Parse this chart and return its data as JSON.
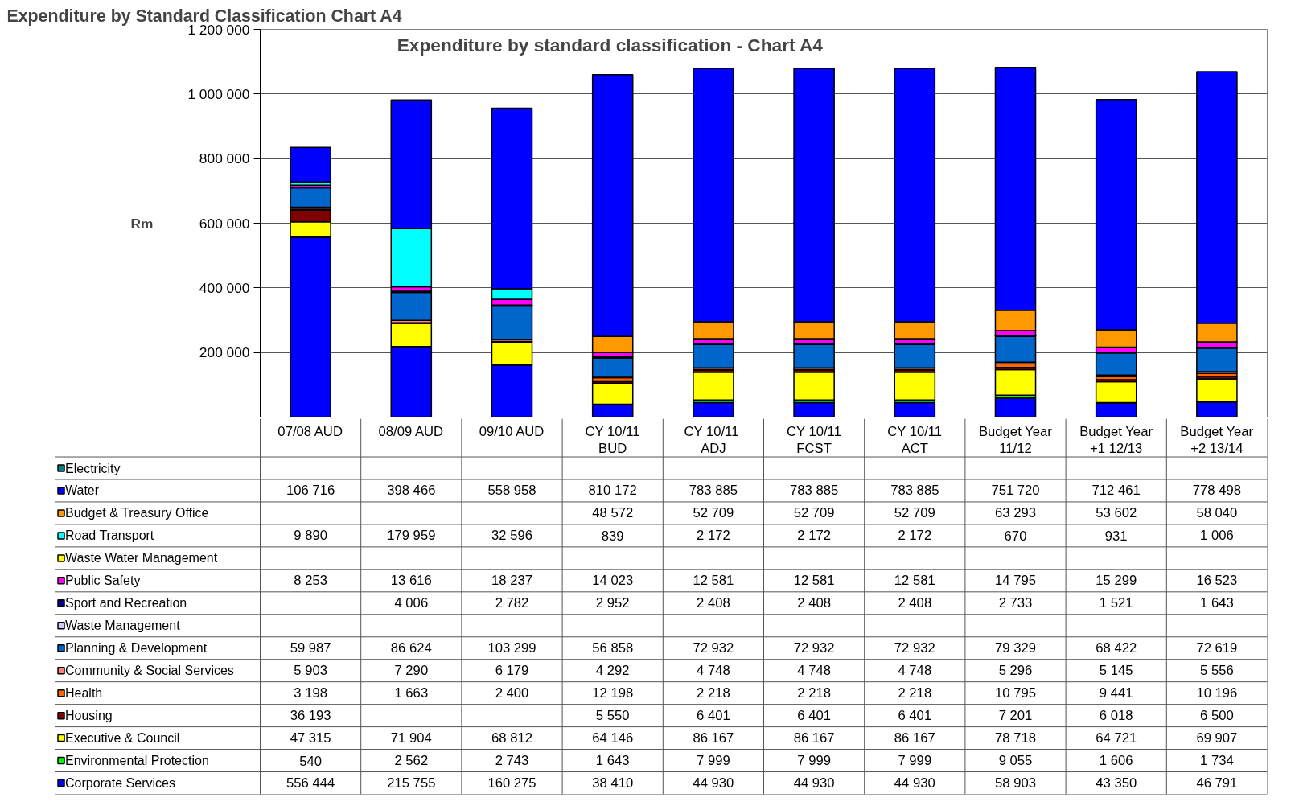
{
  "chart_data": {
    "type": "bar",
    "stacked": true,
    "title": "Expenditure by standard classification - Chart A4",
    "ylabel": "Rm",
    "annotations": [
      "Expenditure by Standard Classification Chart A4"
    ],
    "categories": [
      "07/08 AUD",
      "08/09 AUD",
      "09/10 AUD",
      "CY 10/11\nBUD",
      "CY  10/11\nADJ",
      "CY 10/11\nFCST",
      "CY 10/11\nACT",
      "Budget Year\n11/12",
      "Budget Year\n+1 12/13",
      "Budget Year\n+2 13/14"
    ],
    "ylim": [
      0,
      1200000
    ],
    "yticks": [
      {
        "value": 0,
        "label": null
      },
      {
        "value": 200000,
        "label": "200 000"
      },
      {
        "value": 400000,
        "label": "400 000"
      },
      {
        "value": 600000,
        "label": "600 000"
      },
      {
        "value": 800000,
        "label": "800 000"
      },
      {
        "value": 1000000,
        "label": "1 000 000"
      },
      {
        "value": 1200000,
        "label": "1 200 000"
      }
    ],
    "grid": "y",
    "legend": "bottom",
    "series": [
      {
        "name": "Corporate Services",
        "color": "#0000ff",
        "values": [
          556444,
          215755,
          160275,
          38410,
          44930,
          44930,
          44930,
          58903,
          43350,
          46791
        ],
        "value_labels": [
          "556 444",
          "215 755",
          "160 275",
          "38 410",
          "44 930",
          "44 930",
          "44 930",
          "58 903",
          "43 350",
          "46 791"
        ]
      },
      {
        "name": "Environmental Protection",
        "color": "#00ff00",
        "values": [
          540,
          2562,
          2743,
          1643,
          7999,
          7999,
          7999,
          9055,
          1606,
          1734
        ],
        "value_labels": [
          "540",
          "2 562",
          "2 743",
          "1 643",
          "7 999",
          "7 999",
          "7 999",
          "9 055",
          "1 606",
          "1 734"
        ]
      },
      {
        "name": "Executive & Council",
        "color": "#ffff00",
        "values": [
          47315,
          71904,
          68812,
          64146,
          86167,
          86167,
          86167,
          78718,
          64721,
          69907
        ],
        "value_labels": [
          "47 315",
          "71 904",
          "68 812",
          "64 146",
          "86 167",
          "86 167",
          "86 167",
          "78 718",
          "64 721",
          "69 907"
        ]
      },
      {
        "name": "Housing",
        "color": "#800000",
        "values": [
          36193,
          null,
          null,
          5550,
          6401,
          6401,
          6401,
          7201,
          6018,
          6500
        ],
        "value_labels": [
          "36 193",
          null,
          null,
          "5 550",
          "6 401",
          "6 401",
          "6 401",
          "7 201",
          "6 018",
          "6 500"
        ]
      },
      {
        "name": "Health",
        "color": "#ff6600",
        "values": [
          3198,
          1663,
          2400,
          12198,
          2218,
          2218,
          2218,
          10795,
          9441,
          10196
        ],
        "value_labels": [
          "3 198",
          "1 663",
          "2 400",
          "12 198",
          "2 218",
          "2 218",
          "2 218",
          "10 795",
          "9 441",
          "10 196"
        ]
      },
      {
        "name": "Community & Social Services",
        "color": "#ff8080",
        "values": [
          5903,
          7290,
          6179,
          4292,
          4748,
          4748,
          4748,
          5296,
          5145,
          5556
        ],
        "value_labels": [
          "5 903",
          "7 290",
          "6 179",
          "4 292",
          "4 748",
          "4 748",
          "4 748",
          "5 296",
          "5 145",
          "5 556"
        ]
      },
      {
        "name": "Planning & Development",
        "color": "#0066cc",
        "values": [
          59987,
          86624,
          103299,
          56858,
          72932,
          72932,
          72932,
          79329,
          68422,
          72619
        ],
        "value_labels": [
          "59 987",
          "86 624",
          "103 299",
          "56 858",
          "72 932",
          "72 932",
          "72 932",
          "79 329",
          "68 422",
          "72 619"
        ]
      },
      {
        "name": "Waste Management",
        "color": "#ccccff",
        "values": [
          null,
          null,
          null,
          null,
          null,
          null,
          null,
          null,
          null,
          null
        ]
      },
      {
        "name": "Sport and Recreation",
        "color": "#000080",
        "values": [
          null,
          4006,
          2782,
          2952,
          2408,
          2408,
          2408,
          2733,
          1521,
          1643
        ],
        "value_labels": [
          null,
          "4 006",
          "2 782",
          "2 952",
          "2 408",
          "2 408",
          "2 408",
          "2 733",
          "1 521",
          "1 643"
        ]
      },
      {
        "name": "Public Safety",
        "color": "#ff00ff",
        "values": [
          8253,
          13616,
          18237,
          14023,
          12581,
          12581,
          12581,
          14795,
          15299,
          16523
        ],
        "value_labels": [
          "8 253",
          "13 616",
          "18 237",
          "14 023",
          "12 581",
          "12 581",
          "12 581",
          "14 795",
          "15 299",
          "16 523"
        ]
      },
      {
        "name": "Waste Water Management",
        "color": "#ffff00",
        "values": [
          null,
          null,
          null,
          null,
          null,
          null,
          null,
          null,
          null,
          null
        ]
      },
      {
        "name": "Road Transport",
        "color": "#00ffff",
        "values": [
          9890,
          179959,
          32596,
          839,
          2172,
          2172,
          2172,
          670,
          931,
          1006
        ],
        "value_labels": [
          "9 890",
          "179 959",
          "32 596",
          "839",
          "2 172",
          "2 172",
          "2 172",
          "670",
          "931",
          "1 006"
        ]
      },
      {
        "name": "Budget & Treasury Office",
        "color": "#ff9900",
        "values": [
          null,
          null,
          null,
          48572,
          52709,
          52709,
          52709,
          63293,
          53602,
          58040
        ],
        "value_labels": [
          null,
          null,
          null,
          "48 572",
          "52 709",
          "52 709",
          "52 709",
          "63 293",
          "53 602",
          "58 040"
        ]
      },
      {
        "name": "Water",
        "color": "#0000ff",
        "values": [
          106716,
          398466,
          558958,
          810172,
          783885,
          783885,
          783885,
          751720,
          712461,
          778498
        ],
        "value_labels": [
          "106 716",
          "398 466",
          "558 958",
          "810 172",
          "783 885",
          "783 885",
          "783 885",
          "751 720",
          "712 461",
          "778 498"
        ]
      },
      {
        "name": "Electricity",
        "color": "#008080",
        "values": [
          null,
          null,
          null,
          null,
          null,
          null,
          null,
          null,
          null,
          null
        ]
      }
    ]
  }
}
